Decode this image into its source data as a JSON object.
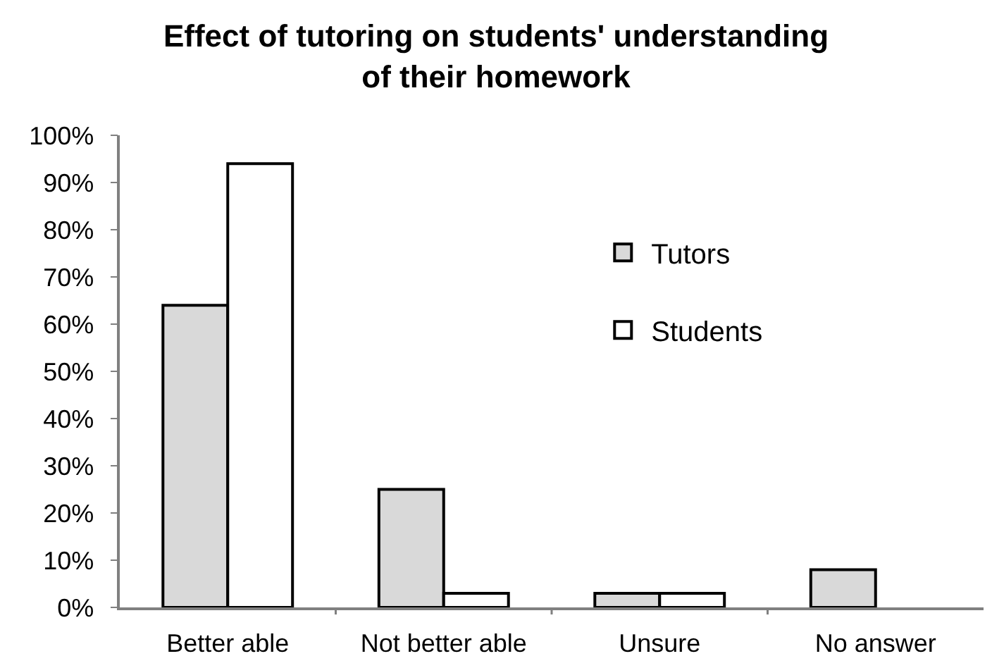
{
  "chart_data": {
    "type": "bar",
    "title": "Effect of tutoring on students' understanding\nof their homework",
    "categories": [
      "Better able",
      "Not better able",
      "Unsure",
      "No answer"
    ],
    "series": [
      {
        "name": "Tutors",
        "color": "#d9d9d9",
        "values": [
          64,
          25,
          3,
          8
        ]
      },
      {
        "name": "Students",
        "color": "#ffffff",
        "values": [
          94,
          3,
          3,
          null
        ]
      }
    ],
    "ylim": [
      0,
      100
    ],
    "yticks": [
      {
        "value": 0,
        "label": "0%"
      },
      {
        "value": 10,
        "label": "10%"
      },
      {
        "value": 20,
        "label": "20%"
      },
      {
        "value": 30,
        "label": "30%"
      },
      {
        "value": 40,
        "label": "40%"
      },
      {
        "value": 50,
        "label": "50%"
      },
      {
        "value": 60,
        "label": "60%"
      },
      {
        "value": 70,
        "label": "70%"
      },
      {
        "value": 80,
        "label": "80%"
      },
      {
        "value": 90,
        "label": "90%"
      },
      {
        "value": 100,
        "label": "100%"
      }
    ],
    "legend": "top"
  }
}
